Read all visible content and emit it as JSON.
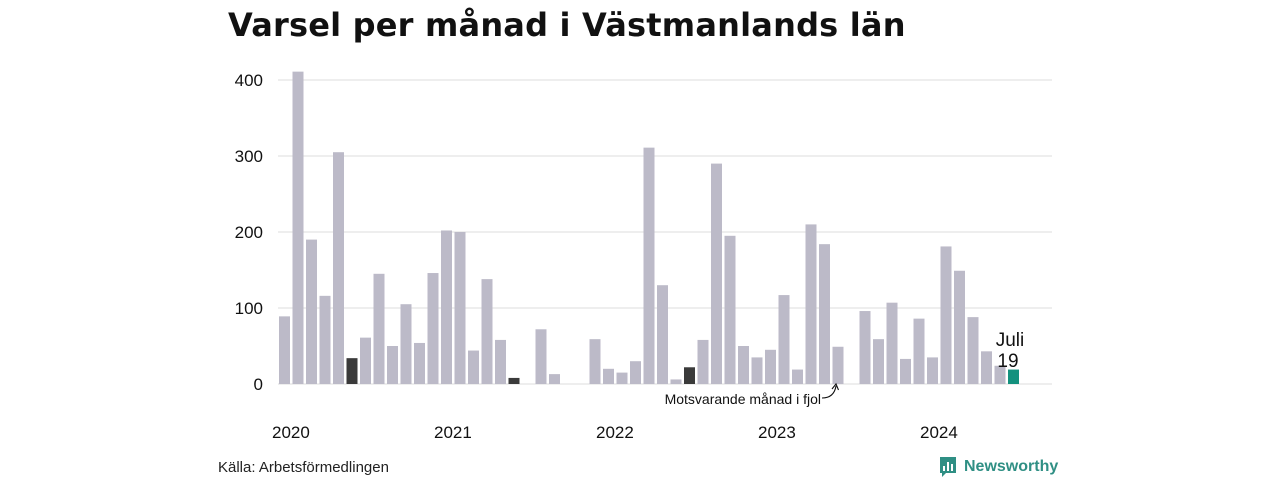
{
  "title": "Varsel per månad i Västmanlands län",
  "source": "Källa: Arbetsförmedlingen",
  "brand": {
    "name": "Newsworthy",
    "icon": "newsworthy-logo-icon",
    "color": "#2f8f84"
  },
  "colors": {
    "bar": "#bcbac8",
    "comparison": "#3a3a3a",
    "current": "#13917e",
    "grid": "#dddddd"
  },
  "chart_data": {
    "type": "bar",
    "title": "Varsel per månad i Västmanlands län",
    "xlabel": "",
    "ylabel": "",
    "ylim": [
      0,
      420
    ],
    "yticks": [
      0,
      100,
      200,
      300,
      400
    ],
    "year_labels": [
      "2020",
      "2021",
      "2022",
      "2023",
      "2024"
    ],
    "grid": true,
    "series": [
      {
        "values": [
          89,
          411,
          190,
          116,
          305,
          34,
          61,
          145,
          50,
          105,
          54,
          146,
          202,
          200,
          44,
          138,
          58,
          8,
          0,
          72,
          13,
          0,
          0,
          59,
          20,
          15,
          30,
          311,
          130,
          6,
          22,
          58,
          290,
          195,
          50,
          35,
          45,
          117,
          19,
          210,
          184,
          49,
          0,
          96,
          59,
          107,
          33,
          86,
          35,
          181,
          149,
          88,
          43,
          24,
          19
        ]
      }
    ],
    "comparison_indices": [
      5,
      17,
      30
    ],
    "current_index": 54,
    "highlight": {
      "month": "Juli",
      "value": "19"
    },
    "annotation": "Motsvarande månad i fjol"
  }
}
